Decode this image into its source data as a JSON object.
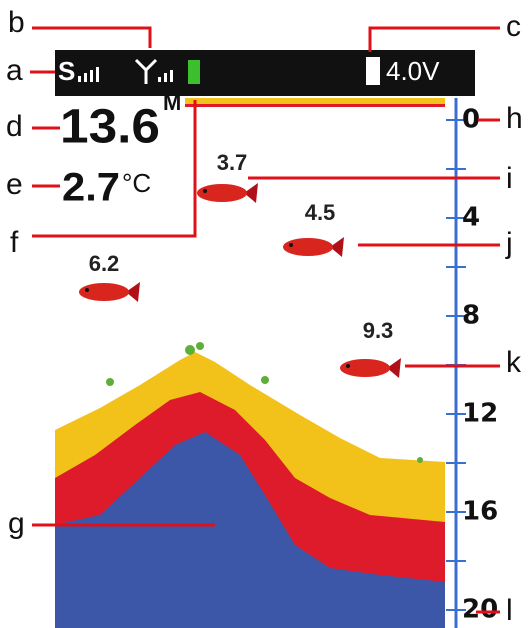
{
  "callouts": [
    "a",
    "b",
    "c",
    "d",
    "e",
    "f",
    "g",
    "h",
    "i",
    "j",
    "k",
    "l"
  ],
  "status_bar": {
    "signal_letter": "S",
    "battery_voltage": "4.0V"
  },
  "readout": {
    "depth": "13.6",
    "depth_unit": "M",
    "temperature": "2.7",
    "temperature_unit": "°C"
  },
  "fish_depths": [
    "3.7",
    "4.5",
    "6.2",
    "9.3"
  ],
  "depth_scale": [
    "0",
    "4",
    "8",
    "12",
    "16",
    "20"
  ]
}
